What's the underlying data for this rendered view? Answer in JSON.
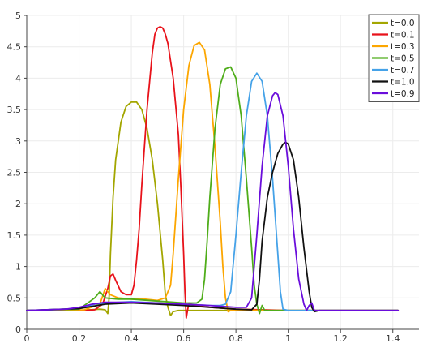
{
  "chart_data": {
    "type": "line",
    "title": "",
    "xlabel": "",
    "ylabel": "",
    "xlim": [
      0,
      1.5
    ],
    "ylim": [
      0,
      5
    ],
    "x_ticks": [
      0,
      0.2,
      0.4,
      0.6,
      0.8,
      1,
      1.2,
      1.4
    ],
    "x_tick_labels": [
      "0",
      "0.2",
      "0.4",
      "0.6",
      "0.8",
      "1",
      "1.2",
      "1.4"
    ],
    "y_ticks": [
      0,
      0.5,
      1,
      1.5,
      2,
      2.5,
      3,
      3.5,
      4,
      4.5,
      5
    ],
    "y_tick_labels": [
      "0",
      "0.5",
      "1",
      "1.5",
      "2",
      "2.5",
      "3",
      "3.5",
      "4",
      "4.5",
      "5"
    ],
    "grid": true,
    "legend_position": "top-right",
    "series": [
      {
        "name": "t=0.0",
        "color": "#a3a600",
        "x": [
          0,
          0.18,
          0.24,
          0.28,
          0.3,
          0.31,
          0.315,
          0.32,
          0.33,
          0.34,
          0.36,
          0.38,
          0.4,
          0.42,
          0.44,
          0.46,
          0.48,
          0.5,
          0.52,
          0.53,
          0.54,
          0.55,
          0.56,
          0.58,
          0.62,
          0.7,
          0.8,
          0.9,
          1.0,
          1.1,
          1.42
        ],
        "y": [
          0.3,
          0.3,
          0.31,
          0.32,
          0.31,
          0.25,
          0.5,
          1.2,
          2.1,
          2.7,
          3.3,
          3.55,
          3.62,
          3.62,
          3.5,
          3.2,
          2.7,
          2.0,
          1.1,
          0.55,
          0.35,
          0.22,
          0.28,
          0.3,
          0.3,
          0.3,
          0.3,
          0.3,
          0.3,
          0.3,
          0.3
        ]
      },
      {
        "name": "t=0.1",
        "color": "#e8121a",
        "x": [
          0,
          0.2,
          0.26,
          0.29,
          0.31,
          0.32,
          0.33,
          0.34,
          0.36,
          0.38,
          0.4,
          0.41,
          0.42,
          0.43,
          0.44,
          0.46,
          0.48,
          0.49,
          0.5,
          0.51,
          0.52,
          0.53,
          0.54,
          0.56,
          0.58,
          0.59,
          0.6,
          0.605,
          0.61,
          0.615,
          0.62,
          0.64,
          0.7,
          0.8,
          1.0,
          1.42
        ],
        "y": [
          0.3,
          0.3,
          0.31,
          0.4,
          0.65,
          0.85,
          0.88,
          0.78,
          0.6,
          0.55,
          0.55,
          0.7,
          1.1,
          1.6,
          2.3,
          3.5,
          4.4,
          4.7,
          4.8,
          4.82,
          4.8,
          4.7,
          4.55,
          4.0,
          3.1,
          2.2,
          1.2,
          0.6,
          0.18,
          0.3,
          0.42,
          0.38,
          0.35,
          0.32,
          0.3,
          0.3
        ]
      },
      {
        "name": "t=0.3",
        "color": "#fca600",
        "x": [
          0,
          0.22,
          0.28,
          0.3,
          0.32,
          0.35,
          0.4,
          0.45,
          0.5,
          0.53,
          0.55,
          0.56,
          0.58,
          0.6,
          0.62,
          0.64,
          0.66,
          0.68,
          0.7,
          0.72,
          0.74,
          0.75,
          0.76,
          0.77,
          0.78,
          0.8,
          0.9,
          1.0,
          1.42
        ],
        "y": [
          0.3,
          0.31,
          0.4,
          0.65,
          0.55,
          0.5,
          0.48,
          0.48,
          0.46,
          0.5,
          0.7,
          1.2,
          2.4,
          3.5,
          4.2,
          4.52,
          4.57,
          4.45,
          3.9,
          2.9,
          1.7,
          1.0,
          0.5,
          0.28,
          0.3,
          0.31,
          0.3,
          0.3,
          0.3
        ]
      },
      {
        "name": "t=0.5",
        "color": "#4fad1a",
        "x": [
          0,
          0.2,
          0.26,
          0.28,
          0.3,
          0.35,
          0.4,
          0.5,
          0.6,
          0.65,
          0.67,
          0.68,
          0.69,
          0.7,
          0.72,
          0.74,
          0.76,
          0.78,
          0.8,
          0.82,
          0.84,
          0.86,
          0.87,
          0.88,
          0.89,
          0.9,
          0.91,
          0.95,
          1.0,
          1.42
        ],
        "y": [
          0.3,
          0.32,
          0.5,
          0.6,
          0.5,
          0.48,
          0.48,
          0.45,
          0.42,
          0.42,
          0.48,
          0.8,
          1.4,
          2.1,
          3.2,
          3.9,
          4.15,
          4.18,
          4.0,
          3.4,
          2.4,
          1.3,
          0.7,
          0.4,
          0.25,
          0.38,
          0.3,
          0.3,
          0.3,
          0.3
        ]
      },
      {
        "name": "t=0.7",
        "color": "#45a2e8",
        "x": [
          0,
          0.2,
          0.26,
          0.3,
          0.4,
          0.5,
          0.6,
          0.7,
          0.74,
          0.76,
          0.78,
          0.8,
          0.82,
          0.84,
          0.86,
          0.88,
          0.9,
          0.92,
          0.94,
          0.96,
          0.97,
          0.98,
          1.0,
          1.1,
          1.42
        ],
        "y": [
          0.3,
          0.33,
          0.4,
          0.42,
          0.44,
          0.42,
          0.4,
          0.38,
          0.38,
          0.4,
          0.6,
          1.5,
          2.5,
          3.4,
          3.95,
          4.08,
          3.95,
          3.4,
          2.4,
          1.2,
          0.6,
          0.32,
          0.3,
          0.3,
          0.3
        ]
      },
      {
        "name": "t=1.0",
        "color": "#111111",
        "x": [
          0,
          0.2,
          0.3,
          0.4,
          0.5,
          0.6,
          0.7,
          0.8,
          0.86,
          0.88,
          0.89,
          0.9,
          0.92,
          0.94,
          0.96,
          0.98,
          0.99,
          1.0,
          1.02,
          1.04,
          1.06,
          1.08,
          1.09,
          1.1,
          1.12,
          1.2,
          1.42
        ],
        "y": [
          0.3,
          0.33,
          0.4,
          0.42,
          0.4,
          0.38,
          0.35,
          0.32,
          0.31,
          0.4,
          0.8,
          1.4,
          2.1,
          2.5,
          2.8,
          2.95,
          2.98,
          2.95,
          2.7,
          2.1,
          1.3,
          0.6,
          0.35,
          0.28,
          0.3,
          0.3,
          0.3
        ]
      },
      {
        "name": "t=0.9",
        "color": "#6a0ddb",
        "x": [
          0,
          0.15,
          0.2,
          0.25,
          0.3,
          0.4,
          0.5,
          0.6,
          0.7,
          0.8,
          0.84,
          0.86,
          0.88,
          0.9,
          0.92,
          0.94,
          0.95,
          0.96,
          0.98,
          1.0,
          1.02,
          1.04,
          1.06,
          1.07,
          1.08,
          1.09,
          1.1,
          1.2,
          1.42
        ],
        "y": [
          0.3,
          0.32,
          0.35,
          0.4,
          0.43,
          0.43,
          0.42,
          0.4,
          0.38,
          0.35,
          0.35,
          0.5,
          1.5,
          2.6,
          3.4,
          3.72,
          3.77,
          3.74,
          3.4,
          2.6,
          1.6,
          0.8,
          0.4,
          0.3,
          0.38,
          0.42,
          0.3,
          0.3,
          0.3
        ]
      }
    ]
  }
}
